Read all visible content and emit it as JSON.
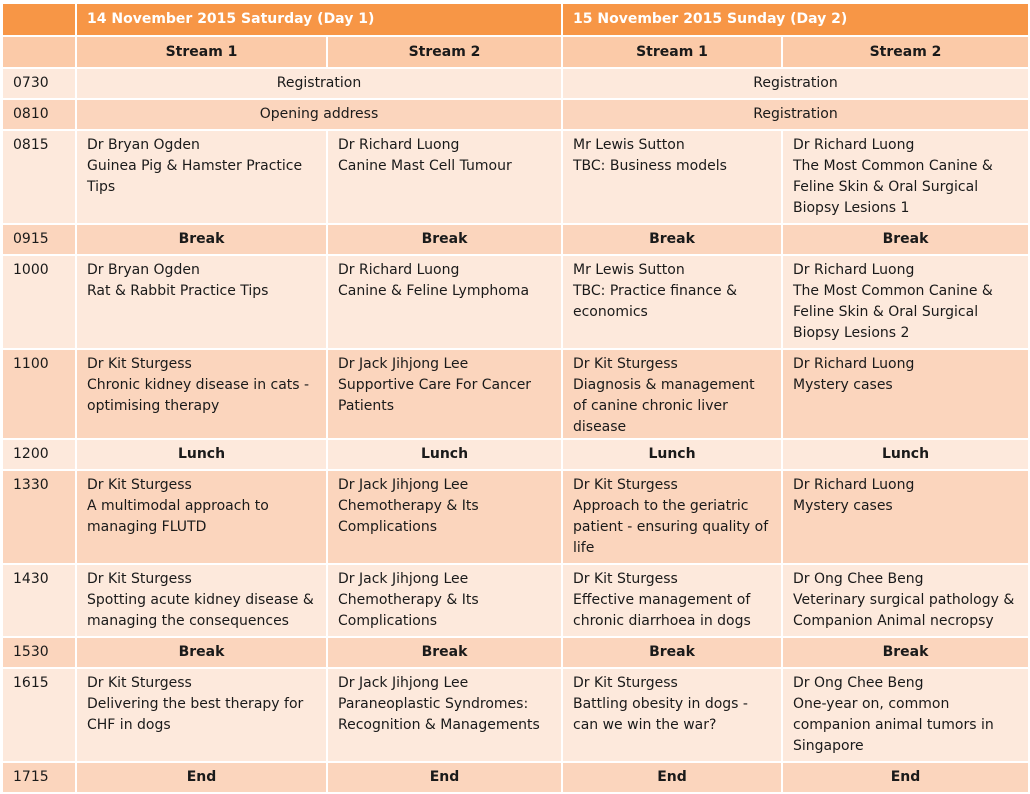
{
  "header": {
    "day1": "14 November 2015 Saturday (Day 1)",
    "day2": "15 November 2015 Sunday (Day 2)",
    "streams": [
      "Stream 1",
      "Stream 2",
      "Stream 1",
      "Stream 2"
    ]
  },
  "rows": [
    {
      "time": "0730",
      "day1": "Registration",
      "day2": "Registration"
    },
    {
      "time": "0810",
      "day1": "Opening address",
      "day2": "Registration"
    },
    {
      "time": "0815",
      "cells": [
        {
          "speaker": "Dr Bryan Ogden",
          "topic": "Guinea Pig & Hamster Practice Tips"
        },
        {
          "speaker": "Dr Richard Luong",
          "topic": "Canine Mast Cell Tumour"
        },
        {
          "speaker": "Mr Lewis Sutton",
          "topic": "TBC: Business models"
        },
        {
          "speaker": "Dr Richard Luong",
          "topic": "The Most Common Canine & Feline Skin & Oral Surgical Biopsy Lesions 1"
        }
      ]
    },
    {
      "time": "0915",
      "labels": [
        "Break",
        "Break",
        "Break",
        "Break"
      ]
    },
    {
      "time": "1000",
      "cells": [
        {
          "speaker": "Dr Bryan Ogden",
          "topic": "Rat & Rabbit Practice Tips"
        },
        {
          "speaker": "Dr Richard Luong",
          "topic": "Canine & Feline Lymphoma"
        },
        {
          "speaker": "Mr Lewis Sutton",
          "topic": "TBC: Practice finance & economics"
        },
        {
          "speaker": "Dr Richard Luong",
          "topic": "The Most Common Canine & Feline Skin & Oral Surgical Biopsy Lesions 2"
        }
      ]
    },
    {
      "time": "1100",
      "cells": [
        {
          "speaker": "Dr Kit Sturgess",
          "topic": "Chronic kidney disease in cats - optimising therapy"
        },
        {
          "speaker": "Dr Jack Jihjong Lee",
          "topic": "Supportive Care For Cancer Patients"
        },
        {
          "speaker": "Dr Kit Sturgess",
          "topic": "Diagnosis & management of canine chronic liver disease"
        },
        {
          "speaker": "Dr Richard Luong",
          "topic": "Mystery cases"
        }
      ]
    },
    {
      "time": "1200",
      "labels": [
        "Lunch",
        "Lunch",
        "Lunch",
        "Lunch"
      ]
    },
    {
      "time": "1330",
      "cells": [
        {
          "speaker": "Dr Kit Sturgess",
          "topic": "A multimodal approach to managing FLUTD"
        },
        {
          "speaker": "Dr Jack Jihjong Lee",
          "topic": "Chemotherapy & Its Complications"
        },
        {
          "speaker": "Dr Kit Sturgess",
          "topic": "Approach to the geriatric patient - ensuring quality of life"
        },
        {
          "speaker": "Dr Richard Luong",
          "topic": "Mystery cases"
        }
      ]
    },
    {
      "time": "1430",
      "cells": [
        {
          "speaker": "Dr Kit Sturgess",
          "topic": "Spotting acute kidney disease & managing the consequences"
        },
        {
          "speaker": "Dr Jack Jihjong Lee",
          "topic": "Chemotherapy & Its Complications"
        },
        {
          "speaker": "Dr Kit Sturgess",
          "topic": "Effective management of chronic diarrhoea in dogs"
        },
        {
          "speaker": "Dr Ong Chee Beng",
          "topic": "Veterinary surgical pathology & Companion Animal necropsy"
        }
      ]
    },
    {
      "time": "1530",
      "labels": [
        "Break",
        "Break",
        "Break",
        "Break"
      ]
    },
    {
      "time": "1615",
      "cells": [
        {
          "speaker": "Dr Kit Sturgess",
          "topic": "Delivering the best therapy for CHF in dogs"
        },
        {
          "speaker": "Dr Jack Jihjong Lee",
          "topic": "Paraneoplastic Syndromes: Recognition & Managements"
        },
        {
          "speaker": "Dr Kit Sturgess",
          "topic": "Battling obesity in dogs - can we win the war?"
        },
        {
          "speaker": "Dr Ong Chee Beng",
          "topic": "One-year on, common companion animal tumors in Singapore"
        }
      ]
    },
    {
      "time": "1715",
      "labels": [
        "End",
        "End",
        "End",
        "End"
      ]
    }
  ]
}
